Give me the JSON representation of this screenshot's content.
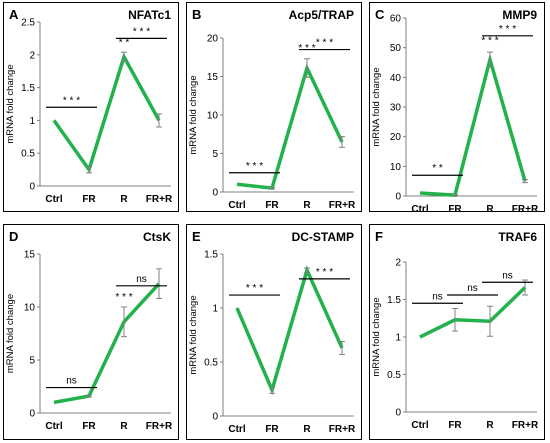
{
  "figure": {
    "line_color": "#22b24c",
    "error_color": "#808080",
    "frame_color": "#000000"
  },
  "chart_data": [
    {
      "type": "line",
      "panel_label": "A",
      "title": "NFATc1",
      "ylabel": "mRNA fold change",
      "ylim": [
        0,
        2.5
      ],
      "yticks": [
        0,
        0.5,
        1,
        1.5,
        2,
        2.5
      ],
      "ytick_labels": [
        "0",
        "0.5",
        "1",
        "1.5",
        "2",
        "2.5"
      ],
      "categories": [
        "Ctrl",
        "FR",
        "R",
        "FR+R"
      ],
      "series": [
        {
          "values": [
            1.0,
            0.25,
            1.97,
            1.0
          ],
          "errors": [
            0,
            0.05,
            0.07,
            0.1
          ]
        }
      ],
      "annotations": [
        {
          "text": "* * *",
          "from": 0,
          "to": 1,
          "y": 1.2
        },
        {
          "text": "* *",
          "from": 2,
          "to": 2,
          "y": 2.08,
          "no_line": true
        },
        {
          "text": "* * *",
          "from": 2,
          "to": 3,
          "y": 2.25
        }
      ]
    },
    {
      "type": "line",
      "panel_label": "B",
      "title": "Acp5/TRAP",
      "ylabel": "mRNA fold change",
      "ylim": [
        0,
        20
      ],
      "yticks": [
        0,
        5,
        10,
        15,
        20
      ],
      "ytick_labels": [
        "0",
        "5",
        "10",
        "15",
        "20"
      ],
      "categories": [
        "Ctrl",
        "FR",
        "R",
        "FR+R"
      ],
      "series": [
        {
          "values": [
            1.0,
            0.5,
            16.1,
            6.5
          ],
          "errors": [
            0,
            0.1,
            1.2,
            0.7
          ]
        }
      ],
      "annotations": [
        {
          "text": "* * *",
          "from": 0,
          "to": 1,
          "y": 2.5
        },
        {
          "text": "* * *",
          "from": 2,
          "to": 2,
          "y": 17.8,
          "no_line": true
        },
        {
          "text": "* * *",
          "from": 2,
          "to": 3,
          "y": 18.5
        }
      ]
    },
    {
      "type": "line",
      "panel_label": "C",
      "title": "MMP9",
      "ylabel": "mRNA fold change",
      "ylim": [
        0,
        60
      ],
      "yticks": [
        0,
        10,
        20,
        30,
        40,
        50,
        60
      ],
      "ytick_labels": [
        "0",
        "10",
        "20",
        "30",
        "40",
        "50",
        "60"
      ],
      "categories": [
        "Ctrl",
        "FR",
        "R",
        "FR+R"
      ],
      "series": [
        {
          "values": [
            1.0,
            0.3,
            46.0,
            5.0
          ],
          "errors": [
            0,
            0.1,
            2.5,
            0.5
          ]
        }
      ],
      "annotations": [
        {
          "text": "* *",
          "from": 0,
          "to": 1,
          "y": 7
        },
        {
          "text": "* * *",
          "from": 2,
          "to": 2,
          "y": 50,
          "no_line": true
        },
        {
          "text": "* * *",
          "from": 2,
          "to": 3,
          "y": 54
        }
      ]
    },
    {
      "type": "line",
      "panel_label": "D",
      "title": "CtsK",
      "ylabel": "mRNA fold change",
      "ylim": [
        0,
        15
      ],
      "yticks": [
        0,
        5,
        10,
        15
      ],
      "ytick_labels": [
        "0",
        "5",
        "10",
        "15"
      ],
      "categories": [
        "Ctrl",
        "FR",
        "R",
        "FR+R"
      ],
      "series": [
        {
          "values": [
            1.0,
            1.6,
            8.6,
            12.2
          ],
          "errors": [
            0,
            0.1,
            1.4,
            1.4
          ]
        }
      ],
      "annotations": [
        {
          "text": "ns",
          "from": 0,
          "to": 1,
          "y": 2.4
        },
        {
          "text": "* * *",
          "from": 2,
          "to": 2,
          "y": 10.3,
          "no_line": true
        },
        {
          "text": "ns",
          "from": 2,
          "to": 3,
          "y": 12.0
        }
      ]
    },
    {
      "type": "line",
      "panel_label": "E",
      "title": "DC-STAMP",
      "ylabel": "mRNA fold change",
      "ylim": [
        0,
        1.5
      ],
      "yticks": [
        0,
        0.5,
        1,
        1.5
      ],
      "ytick_labels": [
        "0",
        "0.5",
        "1",
        "1.5"
      ],
      "categories": [
        "Ctrl",
        "FR",
        "R",
        "FR+R"
      ],
      "series": [
        {
          "values": [
            1.0,
            0.24,
            1.35,
            0.63
          ],
          "errors": [
            0,
            0.03,
            0.02,
            0.06
          ]
        }
      ],
      "annotations": [
        {
          "text": "* * *",
          "from": 0,
          "to": 1,
          "y": 1.12
        },
        {
          "text": "* * *",
          "from": 2,
          "to": 3,
          "y": 1.27
        }
      ]
    },
    {
      "type": "line",
      "panel_label": "F",
      "title": "TRAF6",
      "ylabel": "mRNA fold change",
      "ylim": [
        0,
        2
      ],
      "yticks": [
        0,
        0.5,
        1,
        1.5,
        2
      ],
      "ytick_labels": [
        "0",
        "0.5",
        "1",
        "1.5",
        "2"
      ],
      "categories": [
        "Ctrl",
        "FR",
        "R",
        "FR+R"
      ],
      "series": [
        {
          "values": [
            1.0,
            1.23,
            1.21,
            1.66
          ],
          "errors": [
            0,
            0.15,
            0.2,
            0.1
          ]
        }
      ],
      "annotations": [
        {
          "text": "ns",
          "from": 0,
          "to": 1,
          "y": 1.45
        },
        {
          "text": "ns",
          "from": 1,
          "to": 2,
          "y": 1.56
        },
        {
          "text": "ns",
          "from": 2,
          "to": 3,
          "y": 1.73
        }
      ]
    }
  ]
}
